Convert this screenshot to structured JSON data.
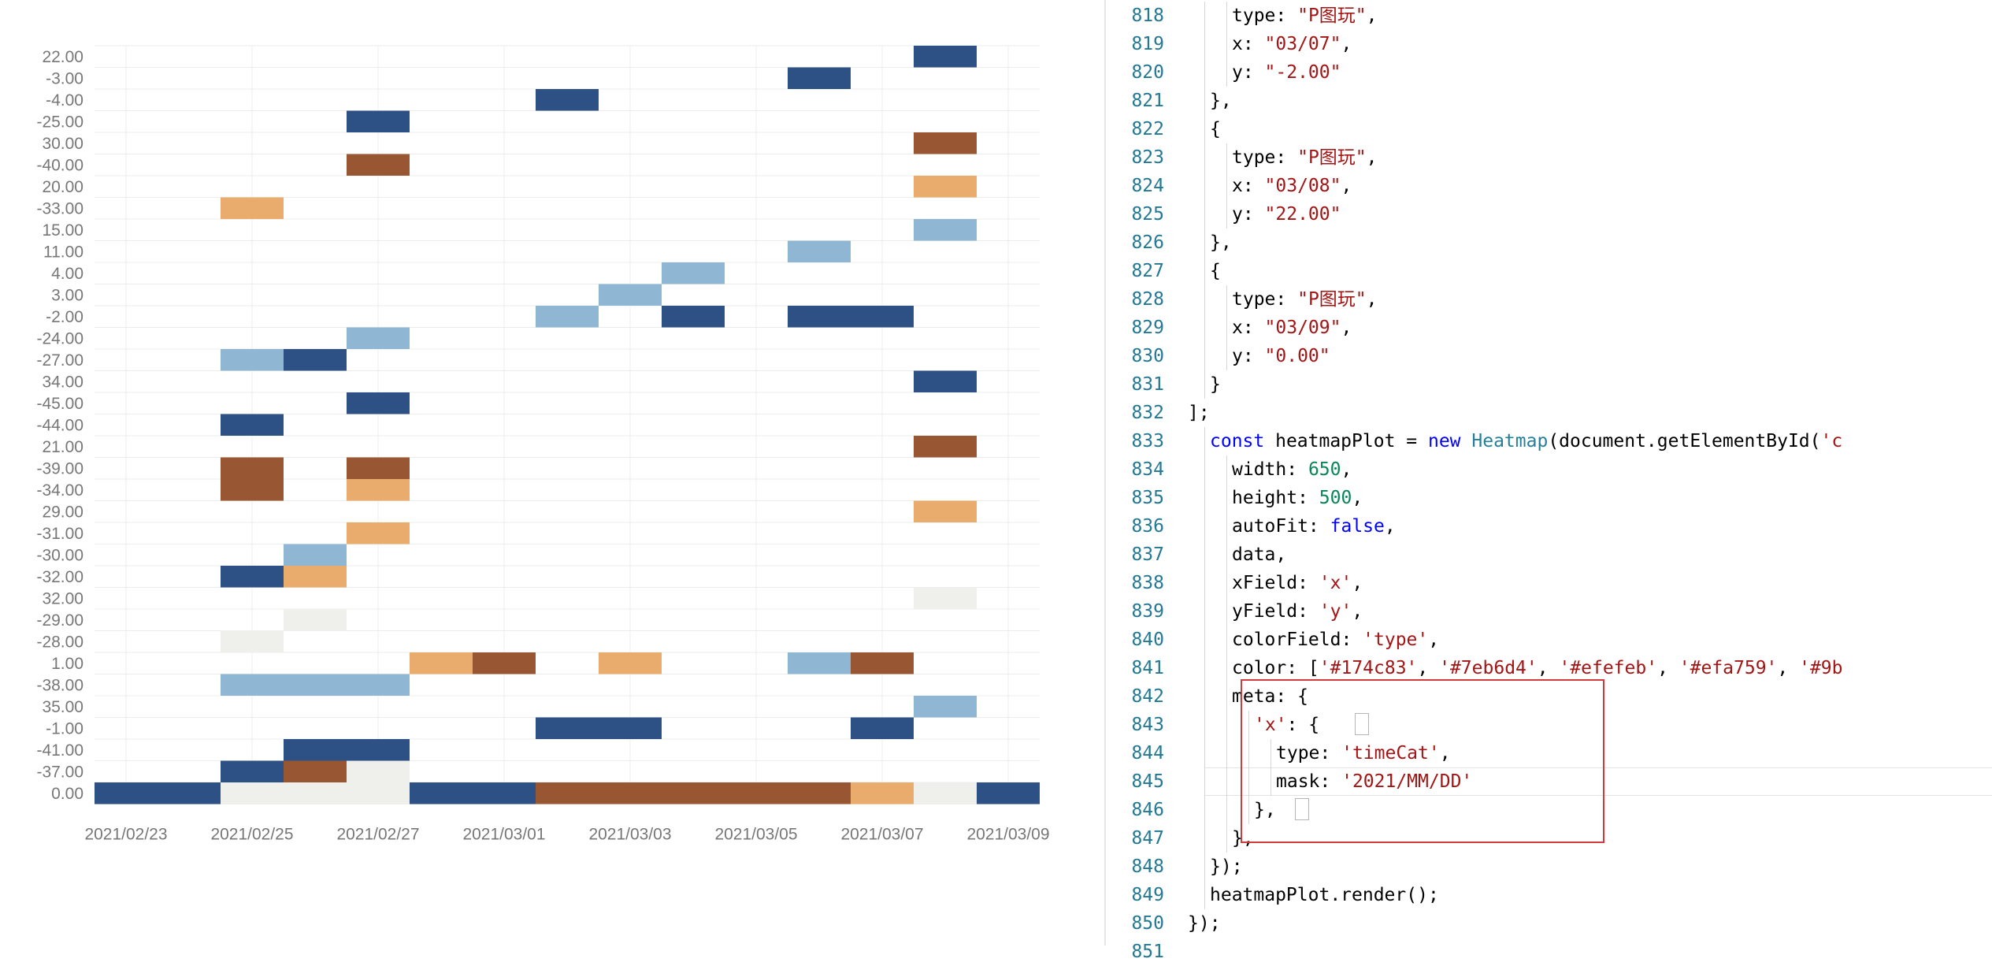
{
  "chart_data": {
    "type": "heatmap",
    "x_ticks": [
      "2021/02/23",
      "2021/02/25",
      "2021/02/27",
      "2021/03/01",
      "2021/03/03",
      "2021/03/05",
      "2021/03/07",
      "2021/03/09"
    ],
    "y_categories": [
      "22.00",
      "-3.00",
      "-4.00",
      "-25.00",
      "30.00",
      "-40.00",
      "20.00",
      "-33.00",
      "15.00",
      "11.00",
      "4.00",
      "3.00",
      "-2.00",
      "-24.00",
      "-27.00",
      "34.00",
      "-45.00",
      "-44.00",
      "21.00",
      "-39.00",
      "-34.00",
      "29.00",
      "-31.00",
      "-30.00",
      "-32.00",
      "32.00",
      "-29.00",
      "-28.00",
      "1.00",
      "-38.00",
      "35.00",
      "-1.00",
      "-41.00",
      "-37.00",
      "0.00"
    ],
    "color_range": [
      "#2d5185",
      "#8fb7d3",
      "#efefeb",
      "#e9ac6d",
      "#985732"
    ],
    "cells": [
      {
        "x": "2021/03/08",
        "y": "22.00",
        "c": 0
      },
      {
        "x": "2021/03/06",
        "y": "-3.00",
        "c": 0
      },
      {
        "x": "2021/03/02",
        "y": "-4.00",
        "c": 0
      },
      {
        "x": "2021/02/27",
        "y": "-25.00",
        "c": 0
      },
      {
        "x": "2021/03/08",
        "y": "30.00",
        "c": 4
      },
      {
        "x": "2021/02/27",
        "y": "-40.00",
        "c": 4
      },
      {
        "x": "2021/03/08",
        "y": "20.00",
        "c": 3
      },
      {
        "x": "2021/02/25",
        "y": "-33.00",
        "c": 3
      },
      {
        "x": "2021/03/08",
        "y": "15.00",
        "c": 1
      },
      {
        "x": "2021/03/06",
        "y": "11.00",
        "c": 1
      },
      {
        "x": "2021/03/04",
        "y": "4.00",
        "c": 1
      },
      {
        "x": "2021/03/03",
        "y": "3.00",
        "c": 1
      },
      {
        "x": "2021/03/02",
        "y": "-2.00",
        "c": 1
      },
      {
        "x": "2021/03/04",
        "y": "-2.00",
        "c": 0
      },
      {
        "x": "2021/03/06",
        "y": "-2.00",
        "c": 0
      },
      {
        "x": "2021/03/07",
        "y": "-2.00",
        "c": 0
      },
      {
        "x": "2021/02/27",
        "y": "-24.00",
        "c": 1
      },
      {
        "x": "2021/02/25",
        "y": "-27.00",
        "c": 1
      },
      {
        "x": "2021/02/26",
        "y": "-27.00",
        "c": 0
      },
      {
        "x": "2021/03/08",
        "y": "34.00",
        "c": 0
      },
      {
        "x": "2021/02/27",
        "y": "-45.00",
        "c": 0
      },
      {
        "x": "2021/02/25",
        "y": "-44.00",
        "c": 0
      },
      {
        "x": "2021/03/08",
        "y": "21.00",
        "c": 4
      },
      {
        "x": "2021/02/25",
        "y": "-39.00",
        "c": 4
      },
      {
        "x": "2021/02/27",
        "y": "-39.00",
        "c": 4
      },
      {
        "x": "2021/02/25",
        "y": "-34.00",
        "c": 4
      },
      {
        "x": "2021/02/27",
        "y": "-34.00",
        "c": 3
      },
      {
        "x": "2021/03/08",
        "y": "29.00",
        "c": 3
      },
      {
        "x": "2021/02/27",
        "y": "-31.00",
        "c": 3
      },
      {
        "x": "2021/02/26",
        "y": "-30.00",
        "c": 1
      },
      {
        "x": "2021/02/25",
        "y": "-32.00",
        "c": 0
      },
      {
        "x": "2021/02/26",
        "y": "-32.00",
        "c": 3
      },
      {
        "x": "2021/03/08",
        "y": "32.00",
        "c": 2
      },
      {
        "x": "2021/02/26",
        "y": "-29.00",
        "c": 2
      },
      {
        "x": "2021/02/25",
        "y": "-28.00",
        "c": 2
      },
      {
        "x": "2021/02/28",
        "y": "1.00",
        "c": 3
      },
      {
        "x": "2021/03/01",
        "y": "1.00",
        "c": 4
      },
      {
        "x": "2021/03/03",
        "y": "1.00",
        "c": 3
      },
      {
        "x": "2021/03/06",
        "y": "1.00",
        "c": 1
      },
      {
        "x": "2021/03/07",
        "y": "1.00",
        "c": 4
      },
      {
        "x": "2021/02/25",
        "y": "-38.00",
        "c": 1
      },
      {
        "x": "2021/02/26",
        "y": "-38.00",
        "c": 1
      },
      {
        "x": "2021/02/27",
        "y": "-38.00",
        "c": 1
      },
      {
        "x": "2021/03/08",
        "y": "35.00",
        "c": 1
      },
      {
        "x": "2021/03/02",
        "y": "-1.00",
        "c": 0
      },
      {
        "x": "2021/03/03",
        "y": "-1.00",
        "c": 0
      },
      {
        "x": "2021/03/07",
        "y": "-1.00",
        "c": 0
      },
      {
        "x": "2021/02/26",
        "y": "-41.00",
        "c": 0
      },
      {
        "x": "2021/02/27",
        "y": "-41.00",
        "c": 0
      },
      {
        "x": "2021/02/25",
        "y": "-37.00",
        "c": 0
      },
      {
        "x": "2021/02/26",
        "y": "-37.00",
        "c": 4
      },
      {
        "x": "2021/02/27",
        "y": "-37.00",
        "c": 2
      },
      {
        "x": "2021/02/23",
        "y": "0.00",
        "c": 0
      },
      {
        "x": "2021/02/24",
        "y": "0.00",
        "c": 0
      },
      {
        "x": "2021/02/25",
        "y": "0.00",
        "c": 2
      },
      {
        "x": "2021/02/26",
        "y": "0.00",
        "c": 2
      },
      {
        "x": "2021/02/27",
        "y": "0.00",
        "c": 2
      },
      {
        "x": "2021/02/28",
        "y": "0.00",
        "c": 0
      },
      {
        "x": "2021/03/01",
        "y": "0.00",
        "c": 0
      },
      {
        "x": "2021/03/02",
        "y": "0.00",
        "c": 4
      },
      {
        "x": "2021/03/03",
        "y": "0.00",
        "c": 4
      },
      {
        "x": "2021/03/04",
        "y": "0.00",
        "c": 4
      },
      {
        "x": "2021/03/05",
        "y": "0.00",
        "c": 4
      },
      {
        "x": "2021/03/06",
        "y": "0.00",
        "c": 4
      },
      {
        "x": "2021/03/07",
        "y": "0.00",
        "c": 3
      },
      {
        "x": "2021/03/08",
        "y": "0.00",
        "c": 2
      },
      {
        "x": "2021/03/09",
        "y": "0.00",
        "c": 0
      }
    ]
  },
  "editor": {
    "lines": [
      {
        "n": "818",
        "indent": 2,
        "tokens": [
          [
            "p",
            "type: "
          ],
          [
            "s",
            "\"P图玩\""
          ],
          [
            "p",
            ","
          ]
        ]
      },
      {
        "n": "819",
        "indent": 2,
        "tokens": [
          [
            "p",
            "x: "
          ],
          [
            "s",
            "\"03/07\""
          ],
          [
            "p",
            ","
          ]
        ]
      },
      {
        "n": "820",
        "indent": 2,
        "tokens": [
          [
            "p",
            "y: "
          ],
          [
            "s",
            "\"-2.00\""
          ]
        ]
      },
      {
        "n": "821",
        "indent": 1,
        "tokens": [
          [
            "p",
            "},"
          ]
        ]
      },
      {
        "n": "822",
        "indent": 1,
        "tokens": [
          [
            "p",
            "{"
          ]
        ]
      },
      {
        "n": "823",
        "indent": 2,
        "tokens": [
          [
            "p",
            "type: "
          ],
          [
            "s",
            "\"P图玩\""
          ],
          [
            "p",
            ","
          ]
        ]
      },
      {
        "n": "824",
        "indent": 2,
        "tokens": [
          [
            "p",
            "x: "
          ],
          [
            "s",
            "\"03/08\""
          ],
          [
            "p",
            ","
          ]
        ]
      },
      {
        "n": "825",
        "indent": 2,
        "tokens": [
          [
            "p",
            "y: "
          ],
          [
            "s",
            "\"22.00\""
          ]
        ]
      },
      {
        "n": "826",
        "indent": 1,
        "tokens": [
          [
            "p",
            "},"
          ]
        ]
      },
      {
        "n": "827",
        "indent": 1,
        "tokens": [
          [
            "p",
            "{"
          ]
        ]
      },
      {
        "n": "828",
        "indent": 2,
        "tokens": [
          [
            "p",
            "type: "
          ],
          [
            "s",
            "\"P图玩\""
          ],
          [
            "p",
            ","
          ]
        ]
      },
      {
        "n": "829",
        "indent": 2,
        "tokens": [
          [
            "p",
            "x: "
          ],
          [
            "s",
            "\"03/09\""
          ],
          [
            "p",
            ","
          ]
        ]
      },
      {
        "n": "830",
        "indent": 2,
        "tokens": [
          [
            "p",
            "y: "
          ],
          [
            "s",
            "\"0.00\""
          ]
        ]
      },
      {
        "n": "831",
        "indent": 1,
        "tokens": [
          [
            "p",
            "}"
          ]
        ]
      },
      {
        "n": "832",
        "indent": 0,
        "tokens": [
          [
            "p",
            "];"
          ]
        ]
      },
      {
        "n": "833",
        "indent": 1,
        "tokens": [
          [
            "k",
            "const"
          ],
          [
            "p",
            " heatmapPlot = "
          ],
          [
            "k",
            "new"
          ],
          [
            "p",
            " "
          ],
          [
            "t",
            "Heatmap"
          ],
          [
            "p",
            "(document.getElementById("
          ],
          [
            "s",
            "'c"
          ]
        ]
      },
      {
        "n": "834",
        "indent": 2,
        "tokens": [
          [
            "p",
            "width: "
          ],
          [
            "n",
            "650"
          ],
          [
            "p",
            ","
          ]
        ]
      },
      {
        "n": "835",
        "indent": 2,
        "tokens": [
          [
            "p",
            "height: "
          ],
          [
            "n",
            "500"
          ],
          [
            "p",
            ","
          ]
        ]
      },
      {
        "n": "836",
        "indent": 2,
        "tokens": [
          [
            "p",
            "autoFit: "
          ],
          [
            "k",
            "false"
          ],
          [
            "p",
            ","
          ]
        ]
      },
      {
        "n": "837",
        "indent": 2,
        "tokens": [
          [
            "p",
            "data,"
          ]
        ]
      },
      {
        "n": "838",
        "indent": 2,
        "tokens": [
          [
            "p",
            "xField: "
          ],
          [
            "s",
            "'x'"
          ],
          [
            "p",
            ","
          ]
        ]
      },
      {
        "n": "839",
        "indent": 2,
        "tokens": [
          [
            "p",
            "yField: "
          ],
          [
            "s",
            "'y'"
          ],
          [
            "p",
            ","
          ]
        ]
      },
      {
        "n": "840",
        "indent": 2,
        "tokens": [
          [
            "p",
            "colorField: "
          ],
          [
            "s",
            "'type'"
          ],
          [
            "p",
            ","
          ]
        ]
      },
      {
        "n": "841",
        "indent": 2,
        "tokens": [
          [
            "p",
            "color: ["
          ],
          [
            "s",
            "'#174c83'"
          ],
          [
            "p",
            ", "
          ],
          [
            "s",
            "'#7eb6d4'"
          ],
          [
            "p",
            ", "
          ],
          [
            "s",
            "'#efefeb'"
          ],
          [
            "p",
            ", "
          ],
          [
            "s",
            "'#efa759'"
          ],
          [
            "p",
            ", "
          ],
          [
            "s",
            "'#9b"
          ]
        ]
      },
      {
        "n": "842",
        "indent": 2,
        "tokens": [
          [
            "p",
            "meta: {"
          ]
        ]
      },
      {
        "n": "843",
        "indent": 3,
        "tokens": [
          [
            "s",
            "'x'"
          ],
          [
            "p",
            ": {"
          ]
        ]
      },
      {
        "n": "844",
        "indent": 4,
        "tokens": [
          [
            "p",
            "type: "
          ],
          [
            "s",
            "'timeCat'"
          ],
          [
            "p",
            ","
          ]
        ]
      },
      {
        "n": "845",
        "indent": 4,
        "tokens": [
          [
            "p",
            "mask: "
          ],
          [
            "s",
            "'2021/MM/DD'"
          ]
        ]
      },
      {
        "n": "846",
        "indent": 3,
        "tokens": [
          [
            "p",
            "},"
          ]
        ]
      },
      {
        "n": "847",
        "indent": 2,
        "tokens": [
          [
            "p",
            "},"
          ]
        ]
      },
      {
        "n": "848",
        "indent": 1,
        "tokens": [
          [
            "p",
            "});"
          ]
        ]
      },
      {
        "n": "849",
        "indent": 1,
        "tokens": [
          [
            "p",
            "heatmapPlot.render();"
          ]
        ]
      },
      {
        "n": "850",
        "indent": 0,
        "tokens": [
          [
            "p",
            "});"
          ]
        ]
      },
      {
        "n": "851",
        "indent": 0,
        "tokens": []
      }
    ]
  }
}
